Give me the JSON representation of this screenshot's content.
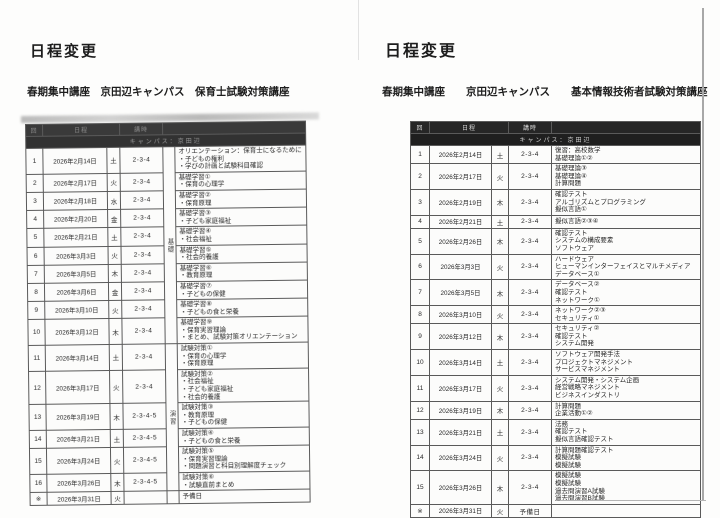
{
  "left_doc": {
    "title": "日程変更",
    "subtitle": "春期集中講座　京田辺キャンパス　保育士試験対策講座",
    "table": {
      "campus": "キャンパス：京田辺",
      "has_group_col": true,
      "columns": [
        {
          "label": "回",
          "span": 1
        },
        {
          "label": "日程",
          "span": 2
        },
        {
          "label": "講時",
          "span": 1
        },
        {
          "label": "",
          "span": 2
        }
      ],
      "rows": [
        {
          "no": "1",
          "date": "2026年2月14日",
          "day": "土",
          "period": "2-3-4",
          "group": {
            "label": "基礎",
            "span": 10
          },
          "lines": [
            "オリエンテーション：保育士になるために",
            "・子どもの権利",
            "・学びの計画と試験科目確認"
          ]
        },
        {
          "no": "2",
          "date": "2026年2月17日",
          "day": "火",
          "period": "2-3-4",
          "lines": [
            "基礎学習①",
            "・保育の心理学"
          ]
        },
        {
          "no": "3",
          "date": "2026年2月18日",
          "day": "水",
          "period": "2-3-4",
          "lines": [
            "基礎学習②",
            "・保育原理"
          ]
        },
        {
          "no": "4",
          "date": "2026年2月20日",
          "day": "金",
          "period": "2-3-4",
          "lines": [
            "基礎学習③",
            "・子ども家庭福祉"
          ]
        },
        {
          "no": "5",
          "date": "2026年2月21日",
          "day": "土",
          "period": "2-3-4",
          "lines": [
            "基礎学習④",
            "・社会福祉"
          ]
        },
        {
          "no": "6",
          "date": "2026年3月3日",
          "day": "火",
          "period": "2-3-4",
          "lines": [
            "基礎学習⑤",
            "・社会的養護"
          ]
        },
        {
          "no": "7",
          "date": "2026年3月5日",
          "day": "木",
          "period": "2-3-4",
          "lines": [
            "基礎学習⑥",
            "・教育原理"
          ]
        },
        {
          "no": "8",
          "date": "2026年3月6日",
          "day": "金",
          "period": "2-3-4",
          "lines": [
            "基礎学習⑦",
            "・子どもの保健"
          ]
        },
        {
          "no": "9",
          "date": "2026年3月10日",
          "day": "火",
          "period": "2-3-4",
          "lines": [
            "基礎学習⑧",
            "・子どもの食と栄養"
          ]
        },
        {
          "no": "10",
          "date": "2026年3月12日",
          "day": "木",
          "period": "2-3-4",
          "lines": [
            "基礎学習⑨",
            "・保育実習理論",
            "・まとめ、試験対策オリエンテーション"
          ]
        },
        {
          "no": "11",
          "date": "2026年3月14日",
          "day": "土",
          "period": "2-3-4",
          "group": {
            "label": "演習",
            "span": 6
          },
          "lines": [
            "試験対策①",
            "・保育の心理学",
            "・保育原理"
          ]
        },
        {
          "no": "12",
          "date": "2026年3月17日",
          "day": "火",
          "period": "2-3-4",
          "lines": [
            "試験対策②",
            "・社会福祉",
            "・子ども家庭福祉",
            "・社会的養護"
          ]
        },
        {
          "no": "13",
          "date": "2026年3月19日",
          "day": "木",
          "period": "2-3-4-5",
          "lines": [
            "試験対策③",
            "・教育原理",
            "・子どもの保健"
          ]
        },
        {
          "no": "14",
          "date": "2026年3月21日",
          "day": "土",
          "period": "2-3-4-5",
          "lines": [
            "試験対策④",
            "・子どもの食と栄養"
          ]
        },
        {
          "no": "15",
          "date": "2026年3月24日",
          "day": "火",
          "period": "2-3-4-5",
          "lines": [
            "試験対策⑤",
            "・保育実習理論",
            "・問題演習と科目別理解度チェック"
          ]
        },
        {
          "no": "16",
          "date": "2026年3月26日",
          "day": "木",
          "period": "2-3-4-5",
          "lines": [
            "試験対策⑥",
            "・試験直前まとめ"
          ]
        },
        {
          "no": "※",
          "date": "2026年3月31日",
          "day": "火",
          "period": "",
          "group": {
            "label": "",
            "span": 1
          },
          "lines": [
            "予備日"
          ]
        }
      ]
    }
  },
  "right_doc": {
    "title": "日程変更",
    "subtitle": "春期集中講座　　京田辺キャンパス　　基本情報技術者試験対策講座",
    "table": {
      "campus": "キャンパス：京田辺",
      "has_group_col": false,
      "columns": [
        {
          "label": "回",
          "span": 1
        },
        {
          "label": "日程",
          "span": 2
        },
        {
          "label": "講時",
          "span": 1
        },
        {
          "label": "",
          "span": 1
        }
      ],
      "rows": [
        {
          "no": "1",
          "date": "2026年2月14日",
          "day": "土",
          "period": "2-3-4",
          "lines": [
            "復習：高校数学",
            "基礎理論①②"
          ]
        },
        {
          "no": "2",
          "date": "2026年2月17日",
          "day": "火",
          "period": "2-3-4",
          "lines": [
            "基礎理論③",
            "基礎理論④",
            "計算問題"
          ]
        },
        {
          "no": "3",
          "date": "2026年2月19日",
          "day": "木",
          "period": "2-3-4",
          "lines": [
            "確認テスト",
            "アルゴリズムとプログラミング",
            "擬似言語①"
          ]
        },
        {
          "no": "4",
          "date": "2026年2月21日",
          "day": "土",
          "period": "2-3-4",
          "lines": [
            "擬似言語②③④"
          ]
        },
        {
          "no": "5",
          "date": "2026年2月26日",
          "day": "木",
          "period": "2-3-4",
          "lines": [
            "確認テスト",
            "システムの構成要素",
            "ソフトウェア"
          ]
        },
        {
          "no": "6",
          "date": "2026年3月3日",
          "day": "火",
          "period": "2-3-4",
          "lines": [
            "ハードウェア",
            "ヒューマンインターフェイスとマルチメディア",
            "データベース①"
          ]
        },
        {
          "no": "7",
          "date": "2026年3月5日",
          "day": "木",
          "period": "2-3-4",
          "lines": [
            "データベース②",
            "確認テスト",
            "ネットワーク①"
          ]
        },
        {
          "no": "8",
          "date": "2026年3月10日",
          "day": "火",
          "period": "2-3-4",
          "lines": [
            "ネットワーク②③",
            "セキュリティ①"
          ]
        },
        {
          "no": "9",
          "date": "2026年3月12日",
          "day": "木",
          "period": "2-3-4",
          "lines": [
            "セキュリティ②",
            "確認テスト",
            "システム開発"
          ]
        },
        {
          "no": "10",
          "date": "2026年3月14日",
          "day": "土",
          "period": "2-3-4",
          "lines": [
            "ソフトウェア開発手法",
            "プロジェクトマネジメント",
            "サービスマネジメント"
          ]
        },
        {
          "no": "11",
          "date": "2026年3月17日",
          "day": "火",
          "period": "2-3-4",
          "lines": [
            "システム開発・システム企画",
            "経営戦略マネジメント",
            "ビジネスインダストリ"
          ]
        },
        {
          "no": "12",
          "date": "2026年3月19日",
          "day": "木",
          "period": "2-3-4",
          "lines": [
            "計算問題",
            "企業活動①②"
          ]
        },
        {
          "no": "13",
          "date": "2026年3月21日",
          "day": "土",
          "period": "2-3-4",
          "lines": [
            "法務",
            "確認テスト",
            "擬似言語確認テスト"
          ]
        },
        {
          "no": "14",
          "date": "2026年3月24日",
          "day": "火",
          "period": "2-3-4",
          "lines": [
            "計算問題確認テスト",
            "模擬試験",
            "模擬試験"
          ]
        },
        {
          "no": "15",
          "date": "2026年3月26日",
          "day": "木",
          "period": "2-3-4",
          "lines": [
            "模擬試験",
            "模擬試験",
            "過去問演習A試験",
            "過去問演習B試験"
          ]
        },
        {
          "no": "※",
          "date": "2026年3月31日",
          "day": "火",
          "period": "予備日",
          "lines": []
        }
      ]
    }
  }
}
